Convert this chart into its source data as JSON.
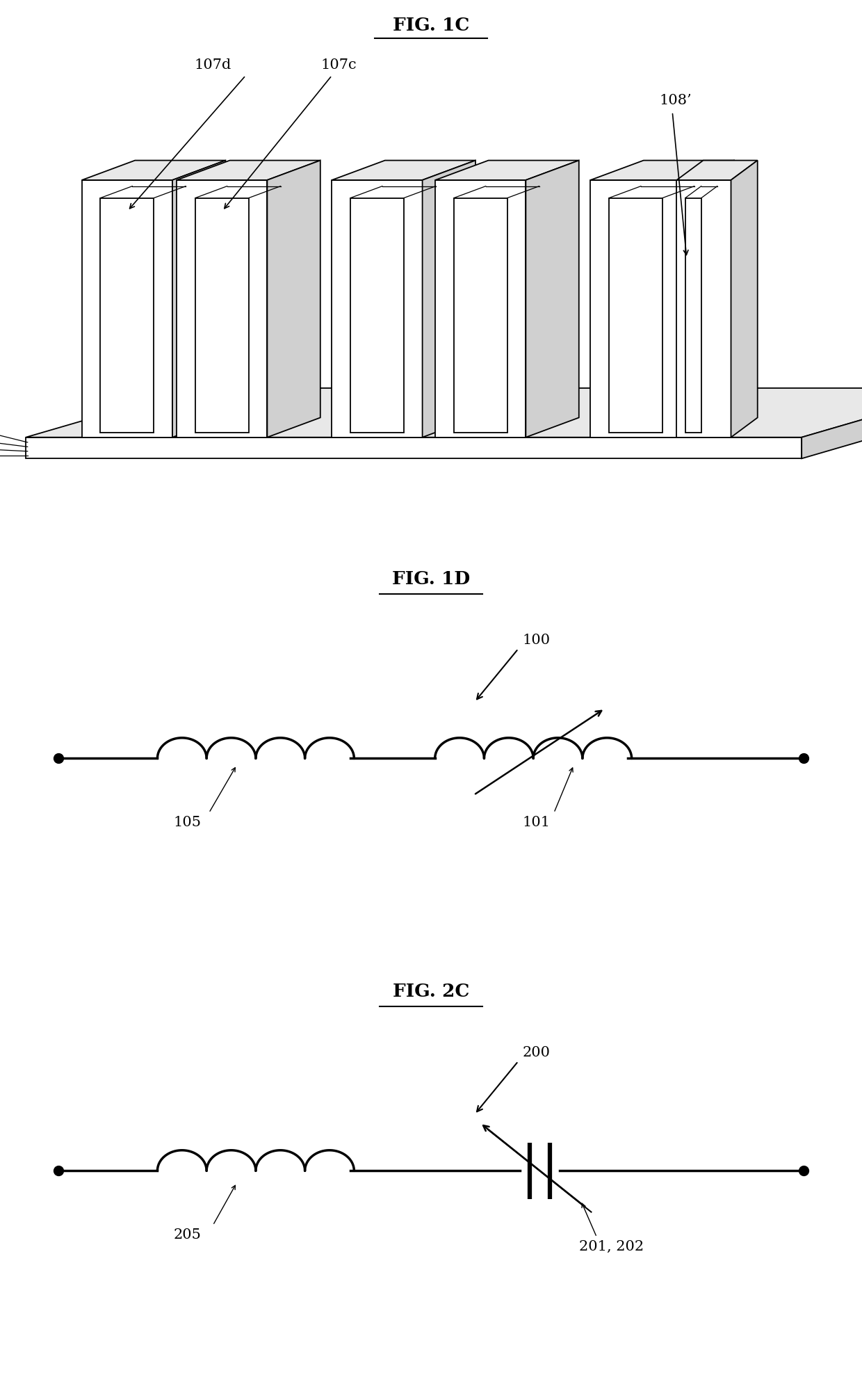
{
  "bg_color": "#ffffff",
  "fig_width": 12.4,
  "fig_height": 20.1,
  "fig1c": {
    "title": "FIG. 1C",
    "label_107d": "107d",
    "label_107c": "107c",
    "label_108p": "108’"
  },
  "fig1d": {
    "title": "FIG. 1D",
    "label_100": "100",
    "label_105": "105",
    "label_101": "101"
  },
  "fig2c": {
    "title": "FIG. 2C",
    "label_200": "200",
    "label_205": "205",
    "label_201_202": "201, 202"
  }
}
